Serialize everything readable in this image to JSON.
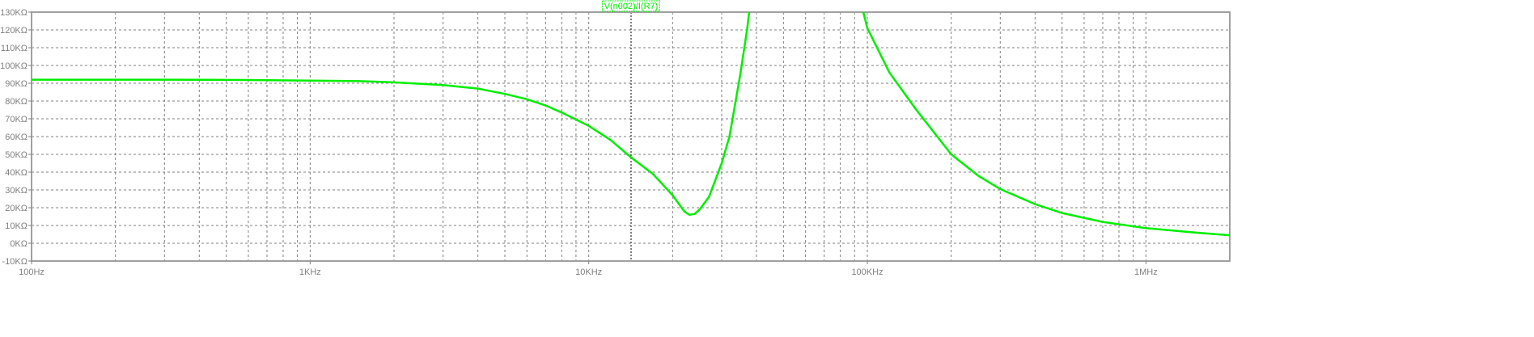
{
  "chart_data": {
    "type": "line",
    "x_scale": "log",
    "xlim": [
      100,
      2000000
    ],
    "ylim": [
      -10000,
      130000
    ],
    "grid": true,
    "x_ticks": [
      {
        "value": 100,
        "label": "100Hz"
      },
      {
        "value": 1000,
        "label": "1KHz"
      },
      {
        "value": 10000,
        "label": "10KHz"
      },
      {
        "value": 100000,
        "label": "100KHz"
      },
      {
        "value": 1000000,
        "label": "1MHz"
      }
    ],
    "y_ticks": [
      {
        "value": 130000,
        "label": "130KΩ"
      },
      {
        "value": 120000,
        "label": "120KΩ"
      },
      {
        "value": 110000,
        "label": "110KΩ"
      },
      {
        "value": 100000,
        "label": "100KΩ"
      },
      {
        "value": 90000,
        "label": "90KΩ"
      },
      {
        "value": 80000,
        "label": "80KΩ"
      },
      {
        "value": 70000,
        "label": "70KΩ"
      },
      {
        "value": 60000,
        "label": "60KΩ"
      },
      {
        "value": 50000,
        "label": "50KΩ"
      },
      {
        "value": 40000,
        "label": "40KΩ"
      },
      {
        "value": 30000,
        "label": "30KΩ"
      },
      {
        "value": 20000,
        "label": "20KΩ"
      },
      {
        "value": 10000,
        "label": "10KΩ"
      },
      {
        "value": 0,
        "label": "0KΩ"
      },
      {
        "value": -10000,
        "label": "-10KΩ"
      }
    ],
    "series": [
      {
        "name": "V(n002)/I(R7)",
        "color": "#00ee00",
        "points": [
          [
            100,
            92000
          ],
          [
            300,
            92000
          ],
          [
            600,
            91800
          ],
          [
            1000,
            91500
          ],
          [
            1500,
            91200
          ],
          [
            2000,
            90500
          ],
          [
            3000,
            89000
          ],
          [
            4000,
            87000
          ],
          [
            5000,
            84000
          ],
          [
            6000,
            81000
          ],
          [
            7000,
            77500
          ],
          [
            8000,
            73500
          ],
          [
            10000,
            66000
          ],
          [
            12000,
            58000
          ],
          [
            14000,
            49000
          ],
          [
            17000,
            39000
          ],
          [
            20000,
            27000
          ],
          [
            22000,
            18000
          ],
          [
            23000,
            16000
          ],
          [
            24000,
            16500
          ],
          [
            25000,
            19000
          ],
          [
            27000,
            26000
          ],
          [
            30000,
            45000
          ],
          [
            32000,
            60000
          ],
          [
            35000,
            95000
          ],
          [
            37000,
            120000
          ],
          [
            38000,
            135000
          ],
          null,
          [
            95000,
            135000
          ],
          [
            100000,
            121000
          ],
          [
            120000,
            96000
          ],
          [
            150000,
            75000
          ],
          [
            200000,
            50000
          ],
          [
            250000,
            38000
          ],
          [
            300000,
            30500
          ],
          [
            400000,
            22000
          ],
          [
            500000,
            17000
          ],
          [
            700000,
            12000
          ],
          [
            1000000,
            8500
          ],
          [
            1500000,
            6000
          ],
          [
            2000000,
            4500
          ]
        ]
      }
    ]
  }
}
